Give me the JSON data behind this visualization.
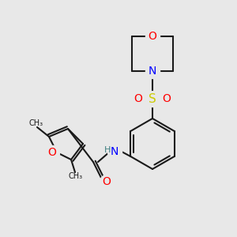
{
  "bg_color": "#e8e8e8",
  "bond_color": "#1a1a1a",
  "bond_width": 1.5,
  "atom_colors": {
    "O": "#ff0000",
    "N": "#0000ff",
    "S": "#cccc00",
    "H": "#408080",
    "C": "#1a1a1a"
  },
  "font_size": 9
}
